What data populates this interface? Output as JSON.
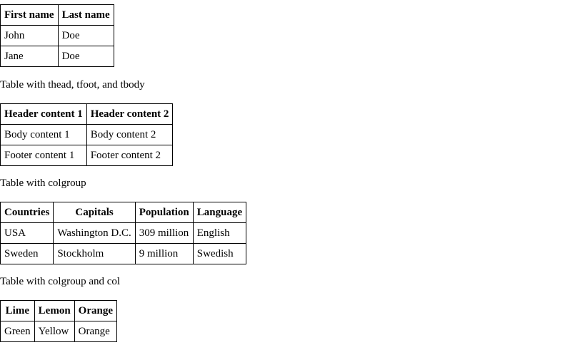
{
  "table1": {
    "headers": [
      "First name",
      "Last name"
    ],
    "rows": [
      [
        "John",
        "Doe"
      ],
      [
        "Jane",
        "Doe"
      ]
    ]
  },
  "caption2": "Table with thead, tfoot, and tbody",
  "table2": {
    "headers": [
      "Header content 1",
      "Header content 2"
    ],
    "body": [
      "Body content 1",
      "Body content 2"
    ],
    "footer": [
      "Footer content 1",
      "Footer content 2"
    ]
  },
  "caption3": "Table with colgroup",
  "table3": {
    "headers": [
      "Countries",
      "Capitals",
      "Population",
      "Language"
    ],
    "rows": [
      [
        "USA",
        "Washington D.C.",
        "309 million",
        "English"
      ],
      [
        "Sweden",
        "Stockholm",
        "9 million",
        "Swedish"
      ]
    ]
  },
  "caption4": "Table with colgroup and col",
  "table4": {
    "headers": [
      "Lime",
      "Lemon",
      "Orange"
    ],
    "rows": [
      [
        "Green",
        "Yellow",
        "Orange"
      ]
    ]
  }
}
